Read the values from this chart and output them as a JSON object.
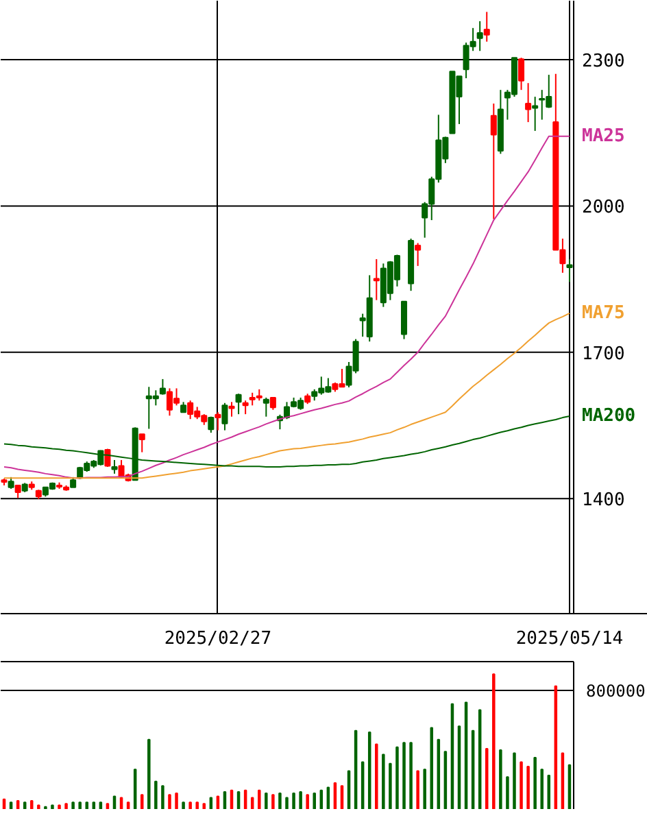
{
  "chart_data": [
    {
      "type": "candlestick",
      "categories": [
        null,
        null,
        null,
        null,
        null,
        null,
        null,
        null,
        null,
        null,
        null,
        null,
        null,
        null,
        null,
        null,
        null,
        null,
        null,
        null,
        null,
        null,
        null,
        null,
        null,
        null,
        null,
        null,
        null,
        null,
        null,
        "2025/02/27",
        null,
        null,
        null,
        null,
        null,
        null,
        null,
        null,
        null,
        null,
        null,
        null,
        null,
        null,
        null,
        null,
        null,
        null,
        null,
        null,
        null,
        null,
        null,
        null,
        null,
        null,
        null,
        null,
        null,
        null,
        null,
        null,
        null,
        null,
        null,
        null,
        null,
        null,
        null,
        null,
        null,
        null,
        null,
        null,
        null,
        null,
        null,
        null,
        null,
        null,
        "2025/05/14"
      ],
      "ohlc": [
        [
          1438,
          1441,
          1427,
          1434
        ],
        [
          1423,
          1444,
          1420,
          1435
        ],
        [
          1427,
          1428,
          1401,
          1413
        ],
        [
          1416,
          1432,
          1413,
          1429
        ],
        [
          1429,
          1435,
          1418,
          1423
        ],
        [
          1416,
          1418,
          1399,
          1404
        ],
        [
          1408,
          1424,
          1404,
          1423
        ],
        [
          1420,
          1433,
          1418,
          1431
        ],
        [
          1427,
          1433,
          1420,
          1424
        ],
        [
          1423,
          1427,
          1416,
          1418
        ],
        [
          1423,
          1444,
          1423,
          1438
        ],
        [
          1442,
          1465,
          1440,
          1463
        ],
        [
          1458,
          1476,
          1455,
          1472
        ],
        [
          1467,
          1479,
          1463,
          1476
        ],
        [
          1470,
          1499,
          1468,
          1498
        ],
        [
          1500,
          1502,
          1465,
          1467
        ],
        [
          1460,
          1479,
          1451,
          1465
        ],
        [
          1467,
          1479,
          1441,
          1444
        ],
        [
          1448,
          1451,
          1435,
          1437
        ],
        [
          1438,
          1546,
          1438,
          1544
        ],
        [
          1532,
          1532,
          1495,
          1521
        ],
        [
          1605,
          1629,
          1543,
          1610
        ],
        [
          1605,
          1622,
          1591,
          1610
        ],
        [
          1615,
          1645,
          1613,
          1626
        ],
        [
          1619,
          1626,
          1570,
          1582
        ],
        [
          1605,
          1626,
          1591,
          1596
        ],
        [
          1577,
          1598,
          1577,
          1591
        ],
        [
          1596,
          1601,
          1563,
          1573
        ],
        [
          1579,
          1588,
          1563,
          1568
        ],
        [
          1570,
          1573,
          1551,
          1558
        ],
        [
          1542,
          1568,
          1535,
          1566
        ],
        [
          1572,
          1577,
          1540,
          1566
        ],
        [
          1554,
          1596,
          1540,
          1591
        ],
        [
          1589,
          1598,
          1568,
          1585
        ],
        [
          1598,
          1615,
          1573,
          1613
        ],
        [
          1596,
          1601,
          1573,
          1591
        ],
        [
          1607,
          1617,
          1591,
          1603
        ],
        [
          1610,
          1624,
          1601,
          1607
        ],
        [
          1596,
          1607,
          1568,
          1603
        ],
        [
          1607,
          1607,
          1582,
          1587
        ],
        [
          1560,
          1572,
          1542,
          1568
        ],
        [
          1566,
          1598,
          1563,
          1588
        ],
        [
          1589,
          1607,
          1587,
          1598
        ],
        [
          1585,
          1607,
          1582,
          1601
        ],
        [
          1610,
          1615,
          1594,
          1598
        ],
        [
          1610,
          1624,
          1601,
          1619
        ],
        [
          1617,
          1650,
          1613,
          1626
        ],
        [
          1619,
          1647,
          1617,
          1629
        ],
        [
          1635,
          1638,
          1619,
          1624
        ],
        [
          1635,
          1666,
          1629,
          1629
        ],
        [
          1633,
          1680,
          1628,
          1671
        ],
        [
          1662,
          1727,
          1657,
          1722
        ],
        [
          1765,
          1779,
          1732,
          1770
        ],
        [
          1732,
          1858,
          1722,
          1811
        ],
        [
          1851,
          1891,
          1807,
          1847
        ],
        [
          1802,
          1882,
          1793,
          1872
        ],
        [
          1821,
          1887,
          1807,
          1885
        ],
        [
          1849,
          1900,
          1835,
          1898
        ],
        [
          1737,
          1804,
          1727,
          1804
        ],
        [
          1841,
          1933,
          1826,
          1929
        ],
        [
          1919,
          1924,
          1877,
          1910
        ],
        [
          1976,
          2008,
          1935,
          2004
        ],
        [
          2004,
          2060,
          1971,
          2055
        ],
        [
          2055,
          2187,
          2048,
          2135
        ],
        [
          2097,
          2142,
          2088,
          2140
        ],
        [
          2149,
          2276,
          2149,
          2276
        ],
        [
          2224,
          2266,
          2168,
          2266
        ],
        [
          2280,
          2335,
          2262,
          2329
        ],
        [
          2327,
          2365,
          2318,
          2337
        ],
        [
          2344,
          2379,
          2318,
          2355
        ],
        [
          2362,
          2398,
          2337,
          2351
        ],
        [
          2185,
          2210,
          1973,
          2146
        ],
        [
          2113,
          2238,
          2107,
          2198
        ],
        [
          2222,
          2238,
          2177,
          2233
        ],
        [
          2229,
          2304,
          2224,
          2304
        ],
        [
          2301,
          2304,
          2238,
          2257
        ],
        [
          2210,
          2252,
          2172,
          2198
        ],
        [
          2201,
          2224,
          2154,
          2205
        ],
        [
          2218,
          2238,
          2177,
          2220
        ],
        [
          2203,
          2269,
          2201,
          2224
        ],
        [
          2172,
          2271,
          1910,
          1910
        ],
        [
          1910,
          1933,
          1863,
          1882
        ],
        [
          1874,
          1891,
          1844,
          1879
        ]
      ],
      "colors": [
        "#ff0000",
        "#006400",
        "#ff0000",
        "#006400",
        "#ff0000",
        "#ff0000",
        "#006400",
        "#006400",
        "#ff0000",
        "#ff0000",
        "#006400",
        "#006400",
        "#006400",
        "#006400",
        "#006400",
        "#ff0000",
        "#006400",
        "#ff0000",
        "#ff0000",
        "#006400",
        "#ff0000",
        "#006400",
        "#006400",
        "#006400",
        "#ff0000",
        "#ff0000",
        "#006400",
        "#ff0000",
        "#ff0000",
        "#ff0000",
        "#006400",
        "#ff0000",
        "#006400",
        "#ff0000",
        "#006400",
        "#ff0000",
        "#ff0000",
        "#ff0000",
        "#006400",
        "#ff0000",
        "#006400",
        "#006400",
        "#006400",
        "#006400",
        "#ff0000",
        "#006400",
        "#006400",
        "#006400",
        "#ff0000",
        "#ff0000",
        "#006400",
        "#006400",
        "#006400",
        "#006400",
        "#ff0000",
        "#006400",
        "#006400",
        "#006400",
        "#006400",
        "#006400",
        "#ff0000",
        "#006400",
        "#006400",
        "#006400",
        "#006400",
        "#006400",
        "#006400",
        "#006400",
        "#006400",
        "#006400",
        "#ff0000",
        "#ff0000",
        "#006400",
        "#006400",
        "#006400",
        "#ff0000",
        "#ff0000",
        "#006400",
        "#006400",
        "#006400",
        "#ff0000",
        "#ff0000",
        "#006400"
      ],
      "series": [
        {
          "type": "line",
          "name": "MA25",
          "color": "#cc3399",
          "values": [
            1465,
            1463,
            1460,
            1458,
            1456,
            1454,
            1451,
            1449,
            1447,
            1444,
            1442,
            1442,
            1443,
            1443,
            1443,
            1444,
            1444,
            1445,
            1445,
            1451,
            1456,
            1462,
            1468,
            1473,
            1479,
            1484,
            1490,
            1495,
            1500,
            1505,
            1511,
            1516,
            1521,
            1526,
            1532,
            1537,
            1542,
            1547,
            1553,
            1558,
            1563,
            1567,
            1570,
            1574,
            1578,
            1582,
            1585,
            1589,
            1593,
            1596,
            1600,
            1608,
            1615,
            1623,
            1630,
            1638,
            1645,
            1659,
            1673,
            1686,
            1700,
            1719,
            1737,
            1756,
            1774,
            1801,
            1828,
            1854,
            1881,
            1911,
            1941,
            1971,
            1991,
            2011,
            2030,
            2050,
            2070,
            2094,
            2119,
            2143,
            2143,
            2143,
            2143
          ]
        },
        {
          "type": "line",
          "name": "MA75",
          "color": "#f0a030",
          "values": [
            1442,
            1442,
            1442,
            1442,
            1442,
            1442,
            1442,
            1442,
            1442,
            1442,
            1442,
            1442,
            1442,
            1442,
            1442,
            1442,
            1442,
            1442,
            1442,
            1442,
            1442,
            1444,
            1446,
            1448,
            1450,
            1452,
            1454,
            1457,
            1459,
            1461,
            1463,
            1465,
            1467,
            1471,
            1475,
            1479,
            1483,
            1486,
            1490,
            1494,
            1498,
            1500,
            1502,
            1503,
            1505,
            1507,
            1509,
            1511,
            1512,
            1514,
            1516,
            1519,
            1522,
            1526,
            1529,
            1532,
            1535,
            1541,
            1546,
            1552,
            1557,
            1562,
            1567,
            1572,
            1577,
            1590,
            1604,
            1617,
            1630,
            1641,
            1653,
            1664,
            1675,
            1687,
            1698,
            1710,
            1723,
            1735,
            1748,
            1760,
            1767,
            1773,
            1780
          ]
        },
        {
          "type": "line",
          "name": "MA200",
          "color": "#006400",
          "values": [
            1512,
            1511,
            1509,
            1508,
            1506,
            1505,
            1504,
            1502,
            1501,
            1499,
            1498,
            1496,
            1494,
            1492,
            1490,
            1489,
            1487,
            1485,
            1483,
            1481,
            1479,
            1478,
            1477,
            1476,
            1475,
            1474,
            1473,
            1472,
            1471,
            1470,
            1469,
            1468,
            1467,
            1467,
            1466,
            1466,
            1466,
            1466,
            1465,
            1465,
            1465,
            1466,
            1466,
            1467,
            1467,
            1468,
            1468,
            1469,
            1469,
            1470,
            1470,
            1472,
            1475,
            1477,
            1479,
            1482,
            1484,
            1486,
            1488,
            1491,
            1493,
            1496,
            1500,
            1503,
            1506,
            1510,
            1513,
            1517,
            1521,
            1524,
            1528,
            1532,
            1536,
            1539,
            1543,
            1546,
            1550,
            1553,
            1556,
            1559,
            1562,
            1566,
            1569
          ]
        }
      ],
      "ylim": [
        1164,
        2421
      ],
      "yticks": [
        1400,
        1700,
        2000,
        2300
      ],
      "grid": true
    },
    {
      "type": "bar",
      "categories": [
        null,
        null,
        null,
        null,
        null,
        null,
        null,
        null,
        null,
        null,
        null,
        null,
        null,
        null,
        null,
        null,
        null,
        null,
        null,
        null,
        null,
        null,
        null,
        null,
        null,
        null,
        null,
        null,
        null,
        null,
        null,
        null,
        null,
        null,
        null,
        null,
        null,
        null,
        null,
        null,
        null,
        null,
        null,
        null,
        null,
        null,
        null,
        null,
        null,
        null,
        null,
        null,
        null,
        null,
        null,
        null,
        null,
        null,
        null,
        null,
        null,
        null,
        null,
        null,
        null,
        null,
        null,
        null,
        null,
        null,
        null,
        null,
        null,
        null,
        null,
        null,
        null,
        null,
        null,
        null,
        null,
        null,
        null
      ],
      "values": [
        70000,
        50000,
        60000,
        50000,
        60000,
        30000,
        20000,
        30000,
        30000,
        40000,
        50000,
        50000,
        50000,
        50000,
        50000,
        40000,
        90000,
        80000,
        50000,
        270000,
        100000,
        470000,
        190000,
        160000,
        100000,
        110000,
        50000,
        50000,
        50000,
        40000,
        80000,
        90000,
        120000,
        130000,
        120000,
        130000,
        80000,
        130000,
        110000,
        100000,
        110000,
        80000,
        110000,
        120000,
        100000,
        110000,
        130000,
        150000,
        180000,
        160000,
        260000,
        530000,
        320000,
        520000,
        440000,
        370000,
        310000,
        420000,
        450000,
        450000,
        260000,
        270000,
        550000,
        470000,
        390000,
        710000,
        560000,
        720000,
        530000,
        670000,
        410000,
        910000,
        400000,
        220000,
        380000,
        320000,
        290000,
        350000,
        270000,
        230000,
        830000,
        380000,
        300000
      ],
      "colors": [
        "#ff0000",
        "#006400",
        "#ff0000",
        "#006400",
        "#ff0000",
        "#ff0000",
        "#006400",
        "#006400",
        "#ff0000",
        "#ff0000",
        "#006400",
        "#006400",
        "#006400",
        "#006400",
        "#006400",
        "#ff0000",
        "#006400",
        "#ff0000",
        "#ff0000",
        "#006400",
        "#ff0000",
        "#006400",
        "#006400",
        "#006400",
        "#ff0000",
        "#ff0000",
        "#006400",
        "#ff0000",
        "#ff0000",
        "#ff0000",
        "#006400",
        "#ff0000",
        "#006400",
        "#ff0000",
        "#006400",
        "#ff0000",
        "#ff0000",
        "#ff0000",
        "#006400",
        "#ff0000",
        "#006400",
        "#006400",
        "#006400",
        "#006400",
        "#ff0000",
        "#006400",
        "#006400",
        "#006400",
        "#ff0000",
        "#ff0000",
        "#006400",
        "#006400",
        "#006400",
        "#006400",
        "#ff0000",
        "#006400",
        "#006400",
        "#006400",
        "#006400",
        "#006400",
        "#ff0000",
        "#006400",
        "#006400",
        "#006400",
        "#006400",
        "#006400",
        "#006400",
        "#006400",
        "#006400",
        "#006400",
        "#ff0000",
        "#ff0000",
        "#006400",
        "#006400",
        "#006400",
        "#ff0000",
        "#ff0000",
        "#006400",
        "#006400",
        "#006400",
        "#ff0000",
        "#ff0000",
        "#006400"
      ],
      "ylim": [
        0,
        994000
      ],
      "yticks": [
        800000
      ],
      "grid": "y"
    }
  ]
}
